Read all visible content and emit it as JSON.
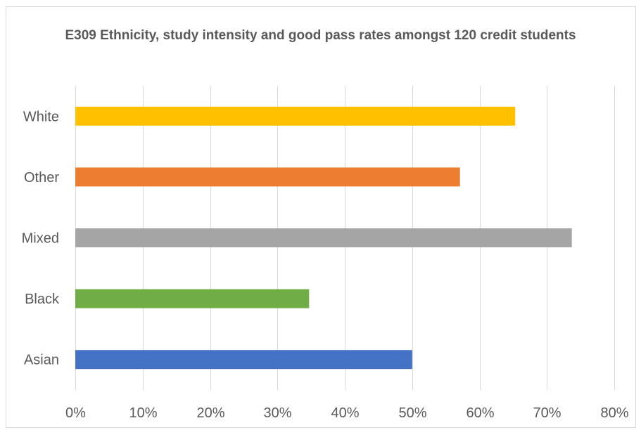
{
  "chart_data": {
    "type": "bar",
    "orientation": "horizontal",
    "title": "E309 Ethnicity, study intensity and good pass rates amongst 120 credit students",
    "xlabel": "",
    "ylabel": "",
    "categories": [
      "White",
      "Other",
      "Mixed",
      "Black",
      "Asian"
    ],
    "values": [
      0.653,
      0.571,
      0.737,
      0.347,
      0.5
    ],
    "colors": [
      "#FFC000",
      "#ED7D31",
      "#A5A5A5",
      "#70AD47",
      "#4472C4"
    ],
    "xlim": [
      0,
      0.8
    ],
    "x_ticks": [
      "0%",
      "10%",
      "20%",
      "30%",
      "40%",
      "50%",
      "60%",
      "70%",
      "80%"
    ],
    "grid": "vertical",
    "legend": "none"
  }
}
